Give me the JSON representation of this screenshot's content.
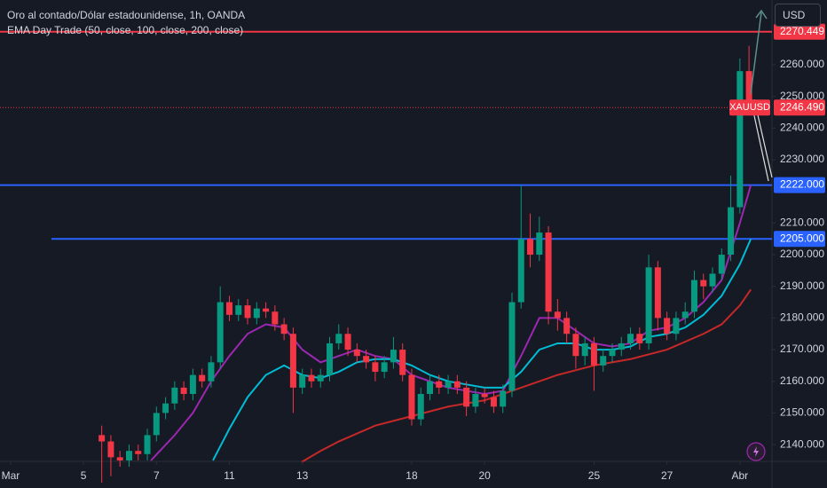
{
  "header": {
    "title": "Oro al contado/Dólar estadounidense, 1h, OANDA",
    "indicator": "EMA Day Trade (50, close, 100, close, 200, close)",
    "currency_button": "USD"
  },
  "chart_data": {
    "type": "candlestick",
    "x": [
      2.5,
      2.75,
      3,
      3.25,
      3.5,
      3.75,
      4,
      4.25,
      4.5,
      4.75,
      5,
      5.25,
      5.5,
      5.75,
      6,
      6.25,
      6.5,
      6.75,
      7,
      7.25,
      7.5,
      7.75,
      8,
      8.25,
      8.5,
      8.75,
      9,
      9.25,
      9.5,
      9.75,
      10,
      10.25,
      10.5,
      10.75,
      11,
      11.25,
      11.5,
      11.75,
      12,
      12.25,
      12.5,
      12.75,
      13,
      13.25,
      13.5,
      13.75,
      14,
      14.25,
      14.5,
      14.75,
      15,
      15.25,
      15.5,
      15.75,
      16,
      16.25,
      16.5,
      16.75,
      17,
      17.25,
      17.5,
      17.75,
      18,
      18.25,
      18.5,
      18.75,
      19,
      19.25,
      19.5,
      19.75,
      20,
      20.25
    ],
    "open": [
      2143,
      2141,
      2136,
      2135,
      2138,
      2137,
      2143,
      2150,
      2153,
      2158,
      2156,
      2162,
      2160,
      2166,
      2185,
      2181,
      2184,
      2180,
      2183,
      2182,
      2178,
      2175,
      2158,
      2162,
      2160,
      2162,
      2172,
      2175,
      2170,
      2168,
      2166,
      2163,
      2166,
      2170,
      2162,
      2148,
      2156,
      2160,
      2158,
      2160,
      2158,
      2152,
      2156,
      2155,
      2152,
      2157,
      2185,
      2205,
      2200,
      2207,
      2182,
      2180,
      2175,
      2168,
      2172,
      2165,
      2168,
      2170,
      2172,
      2175,
      2172,
      2196,
      2180,
      2175,
      2180,
      2182,
      2192,
      2190,
      2194,
      2200,
      2215,
      2258
    ],
    "high": [
      2146,
      2143,
      2138,
      2140,
      2140,
      2145,
      2152,
      2155,
      2160,
      2160,
      2164,
      2164,
      2168,
      2190,
      2187,
      2186,
      2186,
      2185,
      2185,
      2184,
      2180,
      2177,
      2164,
      2164,
      2164,
      2174,
      2178,
      2177,
      2172,
      2170,
      2168,
      2168,
      2174,
      2172,
      2164,
      2158,
      2162,
      2162,
      2162,
      2162,
      2160,
      2158,
      2158,
      2157,
      2159,
      2188,
      2222,
      2213,
      2212,
      2209,
      2186,
      2182,
      2177,
      2174,
      2174,
      2170,
      2172,
      2174,
      2177,
      2177,
      2200,
      2198,
      2182,
      2182,
      2185,
      2195,
      2194,
      2196,
      2202,
      2225,
      2262,
      2266
    ],
    "low": [
      2128,
      2130,
      2133,
      2133,
      2135,
      2135,
      2141,
      2148,
      2151,
      2154,
      2154,
      2158,
      2158,
      2164,
      2179,
      2179,
      2178,
      2178,
      2180,
      2176,
      2173,
      2150,
      2156,
      2158,
      2158,
      2160,
      2170,
      2168,
      2166,
      2164,
      2160,
      2161,
      2164,
      2160,
      2146,
      2146,
      2154,
      2156,
      2156,
      2156,
      2149,
      2150,
      2153,
      2150,
      2150,
      2155,
      2183,
      2196,
      2198,
      2178,
      2176,
      2172,
      2164,
      2165,
      2157,
      2163,
      2166,
      2168,
      2170,
      2170,
      2170,
      2176,
      2173,
      2173,
      2178,
      2180,
      2186,
      2188,
      2192,
      2198,
      2213,
      2244
    ],
    "close": [
      2141,
      2136,
      2135,
      2138,
      2137,
      2143,
      2150,
      2153,
      2158,
      2156,
      2162,
      2160,
      2166,
      2185,
      2181,
      2184,
      2180,
      2183,
      2182,
      2178,
      2175,
      2158,
      2162,
      2160,
      2162,
      2172,
      2175,
      2170,
      2168,
      2166,
      2163,
      2166,
      2170,
      2162,
      2148,
      2156,
      2160,
      2158,
      2160,
      2158,
      2152,
      2156,
      2155,
      2152,
      2157,
      2185,
      2205,
      2200,
      2207,
      2182,
      2180,
      2175,
      2168,
      2172,
      2165,
      2168,
      2170,
      2172,
      2175,
      2172,
      2196,
      2180,
      2175,
      2180,
      2182,
      2192,
      2190,
      2194,
      2200,
      2215,
      2258,
      2246.49
    ],
    "up_color": "#089981",
    "down_color": "#f23645",
    "series": [
      {
        "color": "#9c27b0",
        "x": [
          3.85,
          4.5,
          5,
          5.5,
          6,
          6.5,
          7,
          7.5,
          8,
          8.5,
          9,
          9.5,
          10,
          10.5,
          11,
          11.5,
          12,
          12.5,
          13,
          13.5,
          14,
          14.5,
          15,
          15.5,
          16,
          16.5,
          17,
          17.5,
          18,
          18.5,
          19,
          19.5,
          20,
          20.3
        ],
        "values": [
          2135,
          2143,
          2150,
          2160,
          2168,
          2175,
          2178,
          2177,
          2170,
          2166,
          2168,
          2170,
          2168,
          2167,
          2162,
          2160,
          2158,
          2157,
          2156,
          2157,
          2168,
          2180,
          2180,
          2176,
          2172,
          2171,
          2172,
          2176,
          2177,
          2180,
          2185,
          2192,
          2210,
          2222
        ]
      },
      {
        "color": "#00bcd4",
        "x": [
          5.55,
          6,
          6.5,
          7,
          7.5,
          8,
          8.5,
          9,
          9.5,
          10,
          10.5,
          11,
          11.5,
          12,
          12.5,
          13,
          13.5,
          14,
          14.5,
          15,
          15.5,
          16,
          16.5,
          17,
          17.5,
          18,
          18.5,
          19,
          19.5,
          20,
          20.3
        ],
        "values": [
          2135,
          2145,
          2155,
          2162,
          2165,
          2162,
          2161,
          2163,
          2166,
          2167,
          2167,
          2165,
          2162,
          2160,
          2159,
          2158,
          2158,
          2163,
          2170,
          2172,
          2172,
          2170,
          2170,
          2171,
          2174,
          2175,
          2177,
          2181,
          2187,
          2197,
          2205
        ]
      },
      {
        "color": "#c62828",
        "x": [
          7.98,
          8.5,
          9,
          10,
          11,
          12,
          13,
          14,
          15,
          16,
          17,
          18,
          19,
          19.5,
          20,
          20.3
        ],
        "values": [
          2134.5,
          2138,
          2141,
          2146,
          2149,
          2152,
          2154,
          2158,
          2162,
          2165,
          2167,
          2170,
          2175,
          2178,
          2184,
          2189
        ]
      }
    ],
    "levels": [
      {
        "value": 2270.449,
        "label": "2270.449",
        "color": "#f23645",
        "style": "solid"
      },
      {
        "value": 2222,
        "label": "2222.000",
        "color": "#2962ff",
        "style": "solid"
      },
      {
        "value": 2205,
        "label": "2205.000",
        "color": "#2962ff",
        "style": "solid",
        "x_start": 1.12
      }
    ],
    "last_price": {
      "symbol": "XAUUSD",
      "value": 2246.49,
      "label": "2246.490",
      "color": "#f23645"
    },
    "xlim": [
      -0.29,
      20.88
    ],
    "ylim": [
      2134.7,
      2280.47
    ],
    "xticks": [
      {
        "value": 0,
        "label": "Mar"
      },
      {
        "value": 2,
        "label": "5"
      },
      {
        "value": 4,
        "label": "7"
      },
      {
        "value": 6,
        "label": "11"
      },
      {
        "value": 8,
        "label": "13"
      },
      {
        "value": 11,
        "label": "18"
      },
      {
        "value": 13,
        "label": "20"
      },
      {
        "value": 16,
        "label": "25"
      },
      {
        "value": 18,
        "label": "27"
      },
      {
        "value": 20,
        "label": "Abr"
      }
    ],
    "yticks": [
      {
        "value": 2140,
        "label": "2140.000"
      },
      {
        "value": 2150,
        "label": "2150.000"
      },
      {
        "value": 2160,
        "label": "2160.000"
      },
      {
        "value": 2170,
        "label": "2170.000"
      },
      {
        "value": 2180,
        "label": "2180.000"
      },
      {
        "value": 2190,
        "label": "2190.000"
      },
      {
        "value": 2200,
        "label": "2200.000"
      },
      {
        "value": 2210,
        "label": "2210.000"
      },
      {
        "value": 2230,
        "label": "2230.000"
      },
      {
        "value": 2240,
        "label": "2240.000"
      },
      {
        "value": 2250,
        "label": "2250.000"
      },
      {
        "value": 2260,
        "label": "2260.000"
      }
    ],
    "grid": false
  }
}
